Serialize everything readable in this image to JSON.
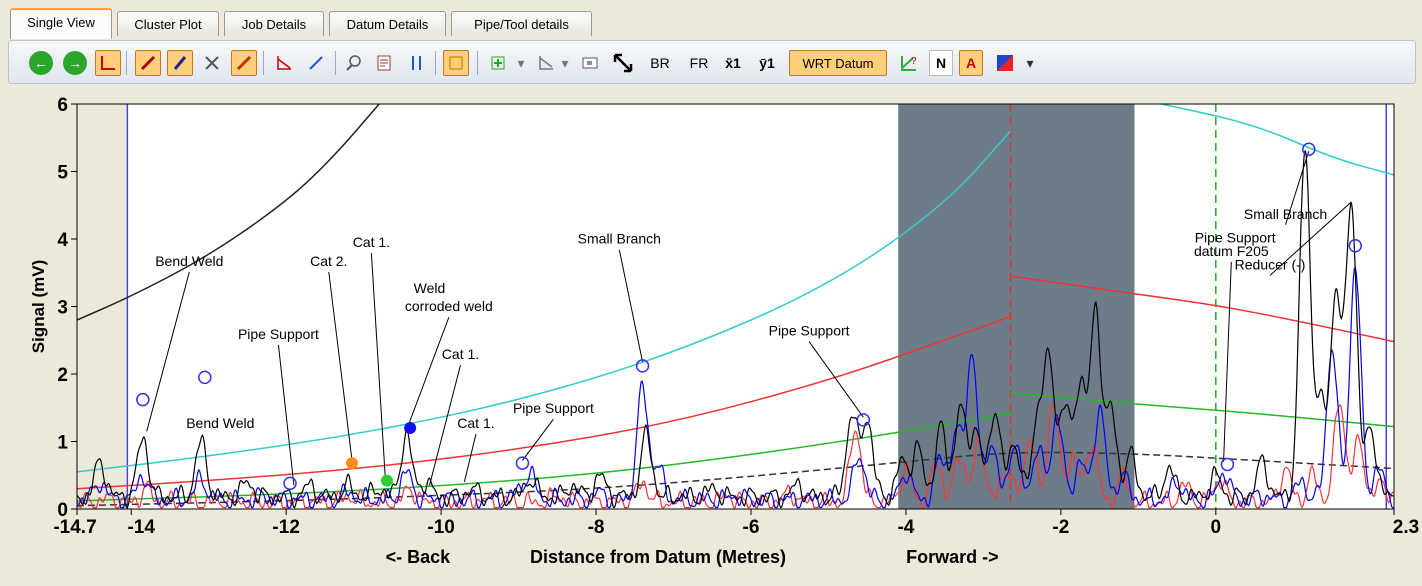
{
  "tabs": [
    "Single View",
    "Cluster Plot",
    "Job Details",
    "Datum Details",
    "Pipe/Tool details"
  ],
  "active_tab": "Single View",
  "toolbar": {
    "back_icon": "back-arrow-icon",
    "forward_icon": "forward-arrow-icon",
    "br_label": "BR",
    "fr_label": "FR",
    "x1_label": "x̄1",
    "y1_label": "ȳ1",
    "wrt_datum_label": "WRT Datum",
    "n_label": "N",
    "a_label": "A"
  },
  "colors": {
    "black_trace": "#000000",
    "blue_trace": "#0000ff",
    "red_trace": "#ff3333",
    "cyan_threshold": "#33cccc",
    "red_threshold": "#ee3333",
    "green_threshold": "#22bb22",
    "shade": "#6e7b88"
  },
  "chart_data": {
    "type": "line",
    "xlabel": "Distance from Datum (Metres)",
    "ylabel": "Signal (mV)",
    "back_label": "<- Back",
    "forward_label": "Forward ->",
    "xlim": [
      -14.7,
      2.3
    ],
    "ylim": [
      0,
      6
    ],
    "x_tick_labels": [
      "-14.7",
      "-14",
      "-12",
      "-10",
      "-8",
      "-6",
      "-4",
      "-2",
      "0",
      "2.3"
    ],
    "x_ticks": [
      -14.7,
      -14,
      -12,
      -10,
      -8,
      -6,
      -4,
      -2,
      0,
      2.3
    ],
    "y_tick_labels": [
      "0",
      "1",
      "2",
      "3",
      "4",
      "5",
      "6"
    ],
    "y_ticks": [
      0,
      1,
      2,
      3,
      4,
      5,
      6
    ],
    "shaded_region": [
      -4.1,
      -1.05
    ],
    "vertical_markers": [
      {
        "x": -14.05,
        "style": "solid",
        "color": "#4444ee"
      },
      {
        "x": -2.65,
        "style": "dashed",
        "color": "#dd3333"
      },
      {
        "x": 0.0,
        "style": "dashed",
        "color": "#22aa22"
      },
      {
        "x": 2.2,
        "style": "solid",
        "color": "#4444ee"
      }
    ],
    "left_band": [
      -14.7,
      -14.05
    ],
    "threshold_curves": [
      {
        "name": "black",
        "points": [
          [
            -14.7,
            2.8
          ],
          [
            -14,
            3.15
          ],
          [
            -13,
            3.75
          ],
          [
            -12,
            4.55
          ],
          [
            -11.4,
            5.2
          ],
          [
            -10.8,
            6.0
          ]
        ]
      },
      {
        "name": "cyan",
        "points": [
          [
            -14.7,
            0.55
          ],
          [
            -13,
            0.78
          ],
          [
            -11,
            1.12
          ],
          [
            -9,
            1.6
          ],
          [
            -7,
            2.3
          ],
          [
            -5,
            3.3
          ],
          [
            -3.5,
            4.5
          ],
          [
            -2.65,
            5.6
          ]
        ]
      },
      {
        "name": "cyan-right",
        "points": [
          [
            -0.7,
            6.0
          ],
          [
            0.5,
            5.7
          ],
          [
            1.5,
            5.2
          ],
          [
            2.3,
            4.95
          ]
        ]
      },
      {
        "name": "red",
        "points": [
          [
            -14.7,
            0.3
          ],
          [
            -13,
            0.42
          ],
          [
            -11,
            0.6
          ],
          [
            -9,
            0.88
          ],
          [
            -7,
            1.28
          ],
          [
            -5,
            1.9
          ],
          [
            -3.5,
            2.5
          ],
          [
            -2.65,
            2.85
          ]
        ]
      },
      {
        "name": "red-right",
        "points": [
          [
            -2.65,
            3.45
          ],
          [
            -1,
            3.18
          ],
          [
            0,
            3.02
          ],
          [
            1,
            2.8
          ],
          [
            2.3,
            2.48
          ]
        ]
      },
      {
        "name": "green",
        "points": [
          [
            -14.7,
            0.12
          ],
          [
            -12,
            0.22
          ],
          [
            -10,
            0.34
          ],
          [
            -8,
            0.52
          ],
          [
            -6,
            0.8
          ],
          [
            -4,
            1.15
          ],
          [
            -2.65,
            1.42
          ]
        ]
      },
      {
        "name": "green-right",
        "points": [
          [
            -2.65,
            1.72
          ],
          [
            -1,
            1.55
          ],
          [
            0.5,
            1.42
          ],
          [
            2.3,
            1.22
          ]
        ]
      },
      {
        "name": "black-dashed",
        "points": [
          [
            -14.7,
            0.05
          ],
          [
            -12,
            0.12
          ],
          [
            -10,
            0.2
          ],
          [
            -8,
            0.3
          ],
          [
            -6,
            0.48
          ],
          [
            -4,
            0.7
          ],
          [
            -2.65,
            0.85
          ],
          [
            -1,
            0.82
          ],
          [
            0.5,
            0.72
          ],
          [
            2.3,
            0.6
          ]
        ]
      }
    ],
    "series": [
      {
        "name": "black",
        "base": 0.18,
        "peaks": [
          [
            -14.4,
            0.7
          ],
          [
            -13.85,
            1.05
          ],
          [
            -13.1,
            1.0
          ],
          [
            -12.5,
            0.4
          ],
          [
            -11.7,
            0.35
          ],
          [
            -11.2,
            0.35
          ],
          [
            -10.8,
            0.3
          ],
          [
            -10.45,
            1.1
          ],
          [
            -10.2,
            0.4
          ],
          [
            -9.6,
            0.3
          ],
          [
            -8.85,
            0.45
          ],
          [
            -8.3,
            0.35
          ],
          [
            -7.95,
            0.5
          ],
          [
            -7.35,
            1.1
          ],
          [
            -6.5,
            0.3
          ],
          [
            -5.4,
            0.35
          ],
          [
            -4.7,
            1.4
          ],
          [
            -4.5,
            1.35
          ],
          [
            -4.05,
            0.7
          ],
          [
            -3.85,
            0.9
          ],
          [
            -3.55,
            1.2
          ],
          [
            -3.3,
            1.5
          ],
          [
            -3.1,
            1.2
          ],
          [
            -2.85,
            1.5
          ],
          [
            -2.6,
            1.0
          ],
          [
            -2.3,
            1.35
          ],
          [
            -2.15,
            2.1
          ],
          [
            -1.95,
            1.5
          ],
          [
            -1.75,
            1.9
          ],
          [
            -1.55,
            2.95
          ],
          [
            -1.35,
            1.45
          ],
          [
            -1.1,
            0.8
          ],
          [
            -0.6,
            0.6
          ],
          [
            0.0,
            0.5
          ],
          [
            0.6,
            0.7
          ],
          [
            1.15,
            5.3
          ],
          [
            1.35,
            1.5
          ],
          [
            1.55,
            3.2
          ],
          [
            1.75,
            4.55
          ],
          [
            2.0,
            1.2
          ]
        ]
      },
      {
        "name": "blue",
        "base": 0.14,
        "peaks": [
          [
            -14.4,
            0.4
          ],
          [
            -13.85,
            0.5
          ],
          [
            -13.1,
            0.45
          ],
          [
            -12.3,
            0.2
          ],
          [
            -11.2,
            0.25
          ],
          [
            -10.45,
            0.55
          ],
          [
            -9.0,
            0.25
          ],
          [
            -8.85,
            0.5
          ],
          [
            -7.95,
            0.25
          ],
          [
            -7.4,
            1.8
          ],
          [
            -7.2,
            0.6
          ],
          [
            -6.2,
            0.2
          ],
          [
            -4.6,
            0.8
          ],
          [
            -4.0,
            0.55
          ],
          [
            -3.55,
            0.75
          ],
          [
            -3.35,
            1.1
          ],
          [
            -3.15,
            2.3
          ],
          [
            -2.9,
            1.0
          ],
          [
            -2.6,
            1.0
          ],
          [
            -2.3,
            0.9
          ],
          [
            -2.05,
            1.4
          ],
          [
            -1.75,
            0.7
          ],
          [
            -1.5,
            1.5
          ],
          [
            -1.2,
            0.5
          ],
          [
            -0.5,
            0.4
          ],
          [
            0.1,
            0.55
          ],
          [
            0.6,
            0.2
          ],
          [
            1.1,
            0.4
          ],
          [
            1.5,
            2.4
          ],
          [
            1.8,
            3.6
          ],
          [
            2.1,
            0.6
          ]
        ]
      },
      {
        "name": "red",
        "base": 0.1,
        "peaks": [
          [
            -14.3,
            0.15
          ],
          [
            -13.8,
            0.3
          ],
          [
            -12.8,
            0.12
          ],
          [
            -11.2,
            0.2
          ],
          [
            -10.4,
            0.3
          ],
          [
            -9.5,
            0.15
          ],
          [
            -8.5,
            0.2
          ],
          [
            -7.4,
            0.4
          ],
          [
            -6.3,
            0.2
          ],
          [
            -5.5,
            0.25
          ],
          [
            -4.65,
            1.2
          ],
          [
            -4.0,
            0.6
          ],
          [
            -3.6,
            0.7
          ],
          [
            -3.3,
            0.8
          ],
          [
            -3.05,
            1.0
          ],
          [
            -2.7,
            0.6
          ],
          [
            -2.4,
            1.1
          ],
          [
            -2.1,
            1.6
          ],
          [
            -1.85,
            0.8
          ],
          [
            -1.6,
            1.0
          ],
          [
            -1.2,
            0.5
          ],
          [
            -0.4,
            0.35
          ],
          [
            0.05,
            0.45
          ],
          [
            0.9,
            0.6
          ],
          [
            1.25,
            0.5
          ],
          [
            1.6,
            1.6
          ],
          [
            1.85,
            1.0
          ],
          [
            2.15,
            0.4
          ]
        ]
      }
    ],
    "markers": [
      {
        "x": -13.85,
        "y": 1.62,
        "style": "open-circle",
        "color": "#3333ee"
      },
      {
        "x": -13.05,
        "y": 1.95,
        "style": "open-circle",
        "color": "#3333ee"
      },
      {
        "x": -11.95,
        "y": 0.38,
        "style": "open-circle",
        "color": "#3333ee"
      },
      {
        "x": -11.15,
        "y": 0.68,
        "style": "filled-circle",
        "color": "#ff8c1a"
      },
      {
        "x": -10.7,
        "y": 0.42,
        "style": "filled-circle",
        "color": "#33cc33"
      },
      {
        "x": -10.4,
        "y": 1.2,
        "style": "filled-circle",
        "color": "#1111ee"
      },
      {
        "x": -8.95,
        "y": 0.68,
        "style": "open-circle",
        "color": "#3333ee"
      },
      {
        "x": -7.4,
        "y": 2.12,
        "style": "open-circle",
        "color": "#3333ee"
      },
      {
        "x": -4.55,
        "y": 1.32,
        "style": "open-circle",
        "color": "#3333ee"
      },
      {
        "x": 0.15,
        "y": 0.66,
        "style": "open-circle",
        "color": "#3333ee"
      },
      {
        "x": 1.2,
        "y": 5.33,
        "style": "open-circle",
        "color": "#3333ee"
      },
      {
        "x": 1.8,
        "y": 3.9,
        "style": "open-circle",
        "color": "#3333ee"
      }
    ],
    "annotations": [
      {
        "text": "Bend Weld",
        "x": -13.25,
        "y": 3.6,
        "tx": -13.8,
        "ty": 1.15
      },
      {
        "text": "Bend Weld",
        "x": -12.85,
        "y": 1.2,
        "tx": null,
        "ty": null
      },
      {
        "text": "Pipe Support",
        "x": -12.1,
        "y": 2.52,
        "tx": -11.9,
        "ty": 0.35
      },
      {
        "text": "Cat 2.",
        "x": -11.45,
        "y": 3.6,
        "tx": -11.15,
        "ty": 0.72
      },
      {
        "text": "Cat 1.",
        "x": -10.9,
        "y": 3.88,
        "tx": -10.72,
        "ty": 0.45
      },
      {
        "text": "Weld",
        "x": -10.15,
        "y": 3.2,
        "tx": null,
        "ty": null
      },
      {
        "text": "corroded weld",
        "x": -9.9,
        "y": 2.93,
        "tx": -10.42,
        "ty": 1.25
      },
      {
        "text": "Cat 1.",
        "x": -9.75,
        "y": 2.22,
        "tx": -10.15,
        "ty": 0.35
      },
      {
        "text": "Cat 1.",
        "x": -9.55,
        "y": 1.2,
        "tx": -9.7,
        "ty": 0.4
      },
      {
        "text": "Pipe Support",
        "x": -8.55,
        "y": 1.42,
        "tx": -8.95,
        "ty": 0.72
      },
      {
        "text": "Small Branch",
        "x": -7.7,
        "y": 3.93,
        "tx": -7.4,
        "ty": 2.18
      },
      {
        "text": "Pipe Support",
        "x": -5.25,
        "y": 2.57,
        "tx": -4.55,
        "ty": 1.36
      },
      {
        "text": "Small Branch",
        "x": 0.9,
        "y": 4.3,
        "tx": 1.2,
        "ty": 5.3
      },
      {
        "text": "Pipe Support",
        "x": 0.25,
        "y": 3.95,
        "tx": null,
        "ty": null
      },
      {
        "text": "datum F205",
        "x": 0.2,
        "y": 3.75,
        "tx": 0.1,
        "ty": 0.7
      },
      {
        "text": "Reducer (-)",
        "x": 0.7,
        "y": 3.55,
        "tx": 1.75,
        "ty": 4.55
      }
    ]
  }
}
